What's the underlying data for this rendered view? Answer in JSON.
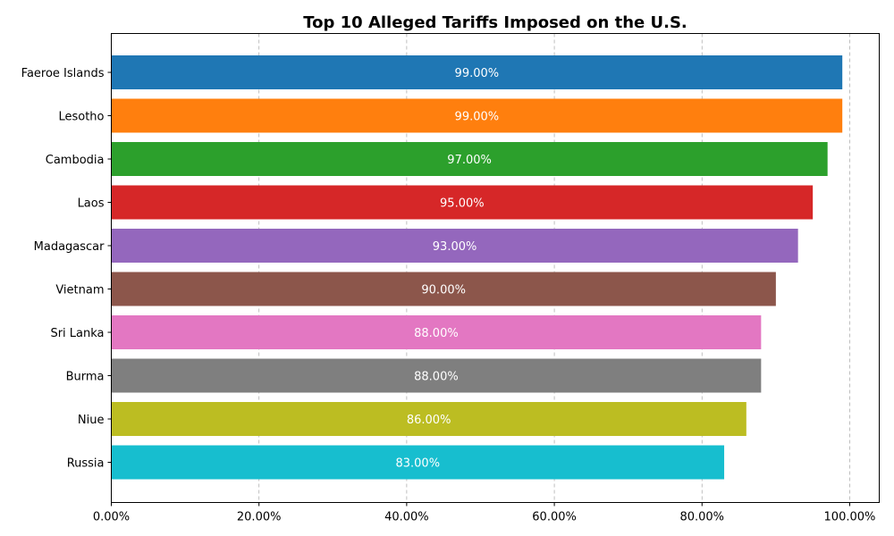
{
  "chart_data": {
    "type": "bar",
    "orientation": "horizontal",
    "title": "Top 10 Alleged Tariffs Imposed on the U.S.",
    "xlabel": "",
    "ylabel": "",
    "categories": [
      "Faeroe Islands",
      "Lesotho",
      "Cambodia",
      "Laos",
      "Madagascar",
      "Vietnam",
      "Sri Lanka",
      "Burma",
      "Niue",
      "Russia"
    ],
    "values": [
      99,
      99,
      97,
      95,
      93,
      90,
      88,
      88,
      86,
      83
    ],
    "value_labels": [
      "99.00%",
      "99.00%",
      "97.00%",
      "95.00%",
      "93.00%",
      "90.00%",
      "88.00%",
      "88.00%",
      "86.00%",
      "83.00%"
    ],
    "colors": [
      "#1f77b4",
      "#ff7f0e",
      "#2ca02c",
      "#d62728",
      "#9467bd",
      "#8c564b",
      "#e377c2",
      "#7f7f7f",
      "#bcbd22",
      "#17becf"
    ],
    "xlim": [
      0,
      104
    ],
    "x_ticks": [
      0,
      20,
      40,
      60,
      80,
      100
    ],
    "x_tick_labels": [
      "0.00%",
      "20.00%",
      "40.00%",
      "60.00%",
      "80.00%",
      "100.00%"
    ],
    "grid": "vertical dashed",
    "legend": "none"
  }
}
